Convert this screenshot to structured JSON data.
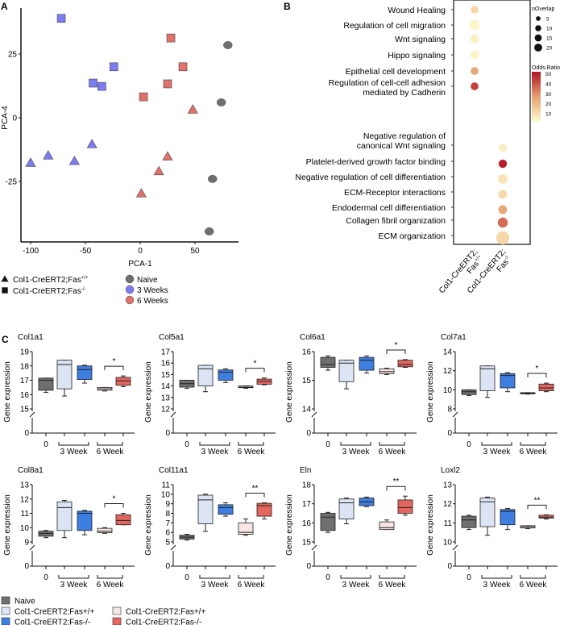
{
  "panel_letters": {
    "a": "A",
    "b": "B",
    "c": "C"
  },
  "colors": {
    "naive": "#6e6e6e",
    "wk3": "#7b7cf0",
    "wk6": "#e0716b",
    "c_naive": "#6f6f6f",
    "c_3wt": "#dfe7f6",
    "c_3ko": "#3d7ee0",
    "c_6wt": "#f8e6e5",
    "c_6ko": "#e3665f",
    "or_low": "#fffbd2",
    "or_mid": "#e5a16f",
    "or_high": "#b11226"
  },
  "chart_data": [
    {
      "type": "scatter",
      "xlabel": "PCA-1",
      "ylabel": "PCA-4",
      "xlim": [
        -105,
        85
      ],
      "ylim": [
        -49,
        43
      ],
      "xticks": [
        -100,
        -50,
        0,
        50
      ],
      "yticks": [
        25,
        0,
        -25
      ],
      "grid": false,
      "legend_shape": [
        {
          "shape": "triangle",
          "label": "Col1-CreERT2;Fas",
          "sup": "+/+"
        },
        {
          "shape": "square",
          "label": "Col1-CreERT2;Fas",
          "sup": "-/-"
        }
      ],
      "legend_color": [
        {
          "group": "naive",
          "label": "Naive"
        },
        {
          "group": "wk3",
          "label": "3 Weeks"
        },
        {
          "group": "wk6",
          "label": "6 Weeks"
        }
      ],
      "points": [
        {
          "x": -72,
          "y": 39,
          "shape": "square",
          "group": "wk3"
        },
        {
          "x": -24,
          "y": 20,
          "shape": "square",
          "group": "wk3"
        },
        {
          "x": -43,
          "y": 13.6,
          "shape": "square",
          "group": "wk3"
        },
        {
          "x": -35,
          "y": 12.3,
          "shape": "square",
          "group": "wk3"
        },
        {
          "x": -100,
          "y": -17.7,
          "shape": "triangle",
          "group": "wk3"
        },
        {
          "x": -84,
          "y": -14.8,
          "shape": "triangle",
          "group": "wk3"
        },
        {
          "x": -60,
          "y": -17,
          "shape": "triangle",
          "group": "wk3"
        },
        {
          "x": -44,
          "y": -10.4,
          "shape": "triangle",
          "group": "wk3"
        },
        {
          "x": 28,
          "y": 31.3,
          "shape": "square",
          "group": "wk6"
        },
        {
          "x": 39,
          "y": 20,
          "shape": "square",
          "group": "wk6"
        },
        {
          "x": 25,
          "y": 13.3,
          "shape": "square",
          "group": "wk6"
        },
        {
          "x": 3,
          "y": 8.2,
          "shape": "square",
          "group": "wk6"
        },
        {
          "x": 48,
          "y": 3.2,
          "shape": "triangle",
          "group": "wk6"
        },
        {
          "x": 25,
          "y": -15.2,
          "shape": "triangle",
          "group": "wk6"
        },
        {
          "x": 17,
          "y": -21,
          "shape": "triangle",
          "group": "wk6"
        },
        {
          "x": 1,
          "y": -29.7,
          "shape": "triangle",
          "group": "wk6"
        },
        {
          "x": 80,
          "y": 28.5,
          "shape": "circle",
          "group": "naive"
        },
        {
          "x": 74,
          "y": 6,
          "shape": "circle",
          "group": "naive"
        },
        {
          "x": 66,
          "y": -24,
          "shape": "circle",
          "group": "naive"
        },
        {
          "x": 63,
          "y": -44.6,
          "shape": "circle",
          "group": "naive"
        }
      ]
    },
    {
      "type": "dot",
      "columns": [
        {
          "line1": "Col1-CreERT2;",
          "line2": "Fas",
          "sup": "+/+"
        },
        {
          "line1": "Col1-CreERT2;",
          "line2": "Fas",
          "sup": "-/-"
        }
      ],
      "size_legend": {
        "title": "nOverlap",
        "values": [
          5,
          10,
          15,
          20
        ]
      },
      "color_legend": {
        "title": "Odds.Ratio",
        "ticks": [
          50,
          40,
          30,
          20,
          10
        ],
        "range": [
          2,
          52
        ]
      },
      "terms": [
        {
          "label": [
            "Wound Healing"
          ],
          "col": 0,
          "n": 5,
          "odds": 12
        },
        {
          "label": [
            "Regulation of cell migration"
          ],
          "col": 0,
          "n": 10,
          "odds": 4
        },
        {
          "label": [
            "Wnt signaling"
          ],
          "col": 0,
          "n": 7,
          "odds": 5
        },
        {
          "label": [
            "Hippo signaling"
          ],
          "col": 0,
          "n": 7,
          "odds": 4
        },
        {
          "label": [
            "Epithelial cell development"
          ],
          "col": 0,
          "n": 5,
          "odds": 25
        },
        {
          "label": [
            "Regulation of cell-cell adhesion",
            "mediated by Cadherin"
          ],
          "col": 0,
          "n": 5,
          "odds": 44
        },
        {
          "label": [
            "Negative regulation of",
            "canonical Wnt signaling"
          ],
          "col": 1,
          "n": 6,
          "odds": 6
        },
        {
          "label": [
            "Platelet-derived growth factor binding"
          ],
          "col": 1,
          "n": 6,
          "odds": 50
        },
        {
          "label": [
            "Negative regulation of cell differentiation"
          ],
          "col": 1,
          "n": 8,
          "odds": 9
        },
        {
          "label": [
            "ECM-Receptor interactions"
          ],
          "col": 1,
          "n": 7,
          "odds": 11
        },
        {
          "label": [
            "Endodermal cell differentiation"
          ],
          "col": 1,
          "n": 7,
          "odds": 25
        },
        {
          "label": [
            "Collagen fibril organization"
          ],
          "col": 1,
          "n": 10,
          "odds": 36
        },
        {
          "label": [
            "ECM organization"
          ],
          "col": 1,
          "n": 20,
          "odds": 12
        }
      ]
    },
    {
      "type": "box",
      "ylabel": "Gene expression",
      "xgroups": [
        "0",
        "3 Week",
        "6 Week"
      ],
      "series": [
        {
          "name": "Naive",
          "color_key": "c_naive"
        },
        {
          "name": "Col1-CreERT2;Fas+/+",
          "color_key": "c_3wt"
        },
        {
          "name": "Col1-CreERT2;Fas-/-",
          "color_key": "c_3ko"
        },
        {
          "name": "Col1-CreERT2;Fas+/+",
          "color_key": "c_6wt"
        },
        {
          "name": "Col1-CreERT2;Fas-/-",
          "color_key": "c_6ko"
        }
      ],
      "plots": [
        {
          "title": "Col1a1",
          "yticks": [
            15,
            16,
            17,
            18,
            19
          ],
          "sig": "*",
          "boxes": [
            [
              16.15,
              16.3,
              17.0,
              17.15,
              17.15
            ],
            [
              15.9,
              16.4,
              18.1,
              18.4,
              18.4
            ],
            [
              16.8,
              17.05,
              17.75,
              18.0,
              18.05
            ],
            [
              16.25,
              16.3,
              16.4,
              16.5,
              16.5
            ],
            [
              16.55,
              16.65,
              16.95,
              17.2,
              17.3
            ]
          ]
        },
        {
          "title": "Col5a1",
          "yticks": [
            12,
            13,
            14,
            15,
            16,
            17
          ],
          "sig": "*",
          "boxes": [
            [
              13.8,
              13.9,
              14.2,
              14.5,
              14.5
            ],
            [
              13.5,
              14.0,
              15.5,
              15.8,
              15.8
            ],
            [
              14.3,
              14.5,
              15.2,
              15.4,
              15.5
            ],
            [
              13.8,
              13.85,
              13.9,
              14.0,
              14.0
            ],
            [
              14.1,
              14.15,
              14.4,
              14.6,
              14.7
            ]
          ]
        },
        {
          "title": "Col6a1",
          "yticks": [
            14,
            15,
            16
          ],
          "sig": "*",
          "boxes": [
            [
              15.35,
              15.45,
              15.55,
              15.8,
              15.85
            ],
            [
              14.7,
              14.95,
              15.6,
              15.7,
              15.7
            ],
            [
              15.25,
              15.35,
              15.7,
              15.8,
              15.85
            ],
            [
              15.2,
              15.23,
              15.3,
              15.4,
              15.42
            ],
            [
              15.45,
              15.47,
              15.55,
              15.7,
              15.72
            ]
          ]
        },
        {
          "title": "Col7a1",
          "yticks": [
            8,
            10,
            12,
            14
          ],
          "sig": "*",
          "boxes": [
            [
              9.4,
              9.5,
              9.8,
              10.0,
              10.0
            ],
            [
              9.2,
              9.9,
              12.2,
              12.5,
              12.5
            ],
            [
              9.8,
              10.2,
              11.5,
              11.7,
              11.8
            ],
            [
              9.55,
              9.6,
              9.65,
              9.7,
              9.7
            ],
            [
              9.8,
              9.9,
              10.2,
              10.6,
              10.7
            ]
          ]
        },
        {
          "title": "Col8a1",
          "yticks": [
            9,
            10,
            11,
            12,
            13
          ],
          "sig": "*",
          "boxes": [
            [
              9.3,
              9.4,
              9.6,
              9.75,
              9.8
            ],
            [
              9.3,
              9.8,
              11.4,
              11.8,
              11.9
            ],
            [
              9.5,
              9.8,
              11.0,
              11.15,
              11.2
            ],
            [
              9.6,
              9.65,
              9.75,
              9.95,
              10.0
            ],
            [
              10.2,
              10.2,
              10.5,
              10.9,
              11.0
            ]
          ]
        },
        {
          "title": "Col11a1",
          "yticks": [
            5,
            6,
            7,
            8,
            9,
            10,
            11
          ],
          "sig": "**",
          "boxes": [
            [
              5.2,
              5.3,
              5.5,
              5.7,
              5.8
            ],
            [
              6.1,
              6.9,
              9.4,
              9.9,
              10.0
            ],
            [
              7.7,
              7.9,
              8.6,
              8.9,
              9.1
            ],
            [
              5.7,
              5.8,
              6.0,
              7.0,
              7.4
            ],
            [
              7.4,
              7.7,
              8.8,
              9.05,
              9.1
            ]
          ]
        },
        {
          "title": "Eln",
          "yticks": [
            15,
            16,
            17,
            18
          ],
          "sig": "**",
          "boxes": [
            [
              15.5,
              15.6,
              16.3,
              16.5,
              16.55
            ],
            [
              15.95,
              16.2,
              17.05,
              17.25,
              17.3
            ],
            [
              16.85,
              16.9,
              17.1,
              17.3,
              17.35
            ],
            [
              15.65,
              15.65,
              15.75,
              16.05,
              16.15
            ],
            [
              16.4,
              16.5,
              16.8,
              17.2,
              17.4
            ]
          ]
        },
        {
          "title": "Loxl2",
          "yticks": [
            10,
            11,
            12,
            13
          ],
          "sig": "**",
          "boxes": [
            [
              10.65,
              10.75,
              11.15,
              11.35,
              11.4
            ],
            [
              10.35,
              10.8,
              12.1,
              12.3,
              12.35
            ],
            [
              10.65,
              10.9,
              11.6,
              11.7,
              11.75
            ],
            [
              10.7,
              10.73,
              10.8,
              10.85,
              10.85
            ],
            [
              11.2,
              11.25,
              11.3,
              11.4,
              11.42
            ]
          ]
        }
      ],
      "zero_label": "0"
    }
  ]
}
